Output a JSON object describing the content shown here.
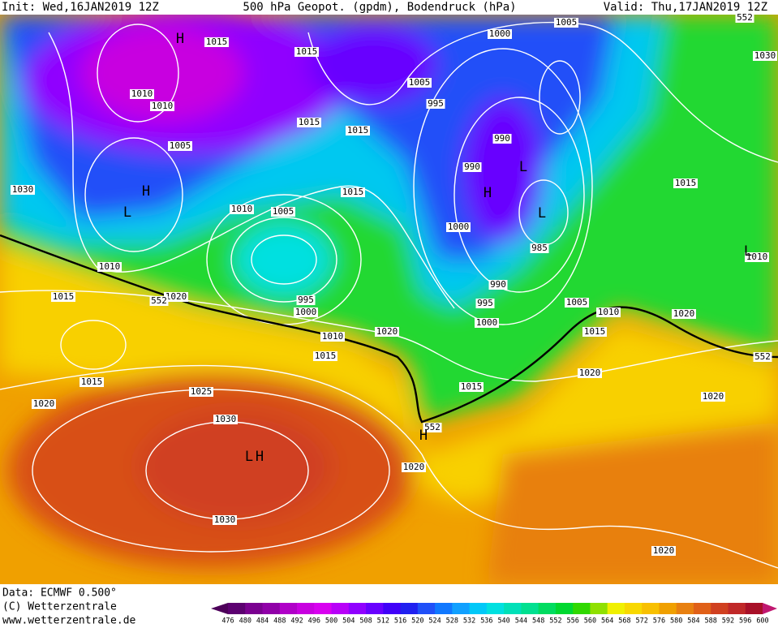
{
  "header": {
    "init": "Init: Wed,16JAN2019 12Z",
    "title": "500 hPa Geopot. (gpdm), Bodendruck (hPa)",
    "valid": "Valid: Thu,17JAN2019 12Z"
  },
  "footer": {
    "data": "Data: ECMWF  0.500°",
    "copyright": "(C) Wetterzentrale",
    "url": "www.wetterzentrale.de"
  },
  "colorbar": {
    "ticks": [
      476,
      480,
      484,
      488,
      492,
      496,
      500,
      504,
      508,
      512,
      516,
      520,
      524,
      528,
      532,
      536,
      540,
      544,
      548,
      552,
      556,
      560,
      564,
      568,
      572,
      576,
      580,
      584,
      588,
      592,
      596,
      600
    ],
    "colors": [
      "#4d005a",
      "#5c0070",
      "#7a0090",
      "#9000a8",
      "#b000c8",
      "#c800e0",
      "#d800f0",
      "#b800f8",
      "#9000ff",
      "#6800ff",
      "#4000f8",
      "#2020f0",
      "#2050f8",
      "#1078ff",
      "#10a0ff",
      "#00c8f8",
      "#00e0e0",
      "#00e0b8",
      "#00e090",
      "#00dc60",
      "#00d830",
      "#30d800",
      "#90e000",
      "#f0f000",
      "#f8d800",
      "#f8c000",
      "#f0a000",
      "#e88010",
      "#e06018",
      "#d04020",
      "#c02828",
      "#a81028",
      "#c01870"
    ]
  },
  "isobar_labels": [
    "1015",
    "1015",
    "1010",
    "1010",
    "1005",
    "1030",
    "1010",
    "1005",
    "1015",
    "1015",
    "1015",
    "1010",
    "1015",
    "1020",
    "552",
    "995",
    "1000",
    "1010",
    "1015",
    "1020",
    "1015",
    "1020",
    "1025",
    "1030",
    "1030",
    "552",
    "1020",
    "1015",
    "1000",
    "1005",
    "1005",
    "995",
    "990",
    "990",
    "1000",
    "985",
    "990",
    "995",
    "1000",
    "1005",
    "1010",
    "1015",
    "1020",
    "1020",
    "1015",
    "1010",
    "1020",
    "1020",
    "552",
    "552",
    "1030"
  ],
  "pressure_centers": [
    "H",
    "H",
    "L",
    "L",
    "H",
    "L",
    "L",
    "H",
    "H",
    "L"
  ]
}
